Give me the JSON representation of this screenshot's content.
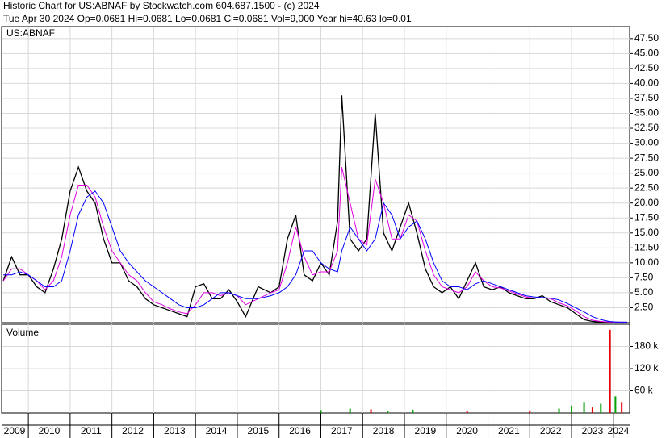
{
  "chart_data": [
    {
      "type": "line",
      "title": "Historic Chart for US:ABNAF by Stockwatch.com 604.687.1500 - (c) 2024",
      "subtitle": "Tue Apr 30 2024  Op=0.0681  Hi=0.0681  Lo=0.0681  Cl=0.0681  Vol=9,000  Year hi=40.63  lo=0.01",
      "label": "US:ABNAF",
      "x": [
        2009.4,
        2009.6,
        2009.8,
        2010.0,
        2010.2,
        2010.4,
        2010.6,
        2010.8,
        2011.0,
        2011.2,
        2011.4,
        2011.6,
        2011.8,
        2012.0,
        2012.2,
        2012.4,
        2012.6,
        2012.8,
        2013.0,
        2013.2,
        2013.4,
        2013.6,
        2013.8,
        2014.0,
        2014.2,
        2014.4,
        2014.6,
        2014.8,
        2015.0,
        2015.2,
        2015.5,
        2015.8,
        2016.0,
        2016.2,
        2016.4,
        2016.6,
        2016.8,
        2017.0,
        2017.2,
        2017.4,
        2017.5,
        2017.7,
        2017.9,
        2018.1,
        2018.3,
        2018.5,
        2018.7,
        2018.9,
        2019.1,
        2019.3,
        2019.5,
        2019.7,
        2019.9,
        2020.1,
        2020.3,
        2020.5,
        2020.7,
        2020.9,
        2021.1,
        2021.3,
        2021.5,
        2021.7,
        2021.9,
        2022.1,
        2022.3,
        2022.5,
        2022.7,
        2022.9,
        2023.1,
        2023.3,
        2023.5,
        2023.7,
        2023.9,
        2024.1,
        2024.33
      ],
      "series": [
        {
          "color": "#000000",
          "values": [
            7,
            11,
            8,
            8,
            6,
            5,
            9,
            14,
            22,
            26,
            22,
            20,
            14,
            10,
            10,
            7,
            6,
            4,
            3,
            2.5,
            2,
            1.5,
            1,
            6,
            6.5,
            4,
            4,
            5.5,
            3.5,
            1,
            6,
            5,
            6,
            14,
            18,
            8,
            7,
            10,
            8,
            17,
            38,
            14,
            12,
            14,
            35,
            15,
            12,
            16,
            20,
            15,
            9,
            6,
            5,
            6,
            4,
            7,
            10,
            6,
            5.5,
            6,
            5,
            4.5,
            4,
            4,
            4.5,
            3.5,
            3,
            2.5,
            1.5,
            0.5,
            0.2,
            0.1,
            0.08,
            0.07,
            0.0681
          ]
        },
        {
          "color": "#e000e0",
          "values": [
            7,
            9,
            9,
            8,
            7,
            5.5,
            7,
            11,
            18,
            23,
            23,
            21,
            16,
            12,
            10,
            8,
            7,
            5,
            3.5,
            3,
            2.3,
            1.8,
            1.5,
            3,
            5,
            5,
            4.5,
            5,
            4.5,
            3,
            4,
            5,
            5.5,
            10,
            16,
            11,
            8,
            8.5,
            8.5,
            12,
            26,
            20,
            14,
            13,
            24,
            20,
            14,
            14,
            18,
            17,
            12,
            8,
            6,
            5.5,
            5,
            6,
            8.5,
            7,
            6,
            5.8,
            5.3,
            4.8,
            4.3,
            4.1,
            4.2,
            4,
            3.3,
            2.8,
            2,
            1,
            0.4,
            0.2,
            0.1,
            0.08,
            0.07
          ]
        },
        {
          "color": "#0000ff",
          "values": [
            8,
            8,
            8.5,
            8,
            7,
            6,
            6,
            7,
            12,
            18,
            21,
            22,
            20,
            16,
            12,
            10,
            8.5,
            7,
            6,
            5,
            4,
            3,
            2.5,
            2.5,
            3,
            4,
            5,
            5,
            4.5,
            4,
            4,
            4.5,
            5,
            6,
            8,
            12,
            12,
            10,
            9,
            8.5,
            12,
            16,
            14,
            12,
            14,
            20,
            18,
            14,
            16,
            17,
            14,
            10,
            7,
            6,
            6,
            5.5,
            6.5,
            7,
            6.5,
            6,
            5.5,
            5,
            4.5,
            4.3,
            4.2,
            4.1,
            3.8,
            3.2,
            2.5,
            1.8,
            1,
            0.5,
            0.2,
            0.1,
            0.08
          ]
        }
      ],
      "xlim": [
        2009.36,
        2024.39
      ],
      "xticks": [
        2009,
        2010,
        2011,
        2012,
        2013,
        2014,
        2015,
        2016,
        2017,
        2018,
        2019,
        2020,
        2021,
        2022,
        2023,
        2024
      ],
      "ylim": [
        0,
        49.5
      ],
      "yticks": [
        {
          "value": 2.5,
          "label": "2.50"
        },
        {
          "value": 5,
          "label": "5.00"
        },
        {
          "value": 7.5,
          "label": "7.50"
        },
        {
          "value": 10,
          "label": "10.00"
        },
        {
          "value": 12.5,
          "label": "12.50"
        },
        {
          "value": 15,
          "label": "15.00"
        },
        {
          "value": 17.5,
          "label": "17.50"
        },
        {
          "value": 20,
          "label": "20.00"
        },
        {
          "value": 22.5,
          "label": "22.50"
        },
        {
          "value": 25,
          "label": "25.00"
        },
        {
          "value": 27.5,
          "label": "27.50"
        },
        {
          "value": 30,
          "label": "30.00"
        },
        {
          "value": 32.5,
          "label": "32.50"
        },
        {
          "value": 35,
          "label": "35.00"
        },
        {
          "value": 37.5,
          "label": "37.50"
        },
        {
          "value": 40,
          "label": "40.00"
        },
        {
          "value": 42.5,
          "label": "42.50"
        },
        {
          "value": 45,
          "label": "45.00"
        },
        {
          "value": 47.5,
          "label": "47.50"
        }
      ],
      "grid": true
    },
    {
      "type": "bar",
      "title": "Volume",
      "x": [
        2017.0,
        2017.7,
        2018.2,
        2018.6,
        2019.2,
        2020.5,
        2022.0,
        2022.7,
        2023.0,
        2023.3,
        2023.5,
        2023.7,
        2023.92,
        2024.05,
        2024.2
      ],
      "values": [
        8000,
        12000,
        10000,
        6000,
        9000,
        5000,
        7000,
        12000,
        20000,
        30000,
        15000,
        25000,
        225000,
        45000,
        30000
      ],
      "colors": [
        "#00a000",
        "#00a000",
        "#e00000",
        "#00a000",
        "#00a000",
        "#e00000",
        "#e00000",
        "#00a000",
        "#00a000",
        "#00a000",
        "#e00000",
        "#00a000",
        "#e00000",
        "#00a000",
        "#e00000"
      ],
      "xlim": [
        2009.36,
        2024.39
      ],
      "ylim": [
        0,
        240000
      ],
      "yticks": [
        {
          "value": 60000,
          "label": "60 k"
        },
        {
          "value": 120000,
          "label": "120 k"
        },
        {
          "value": 180000,
          "label": "180 k"
        }
      ],
      "grid": true
    }
  ]
}
